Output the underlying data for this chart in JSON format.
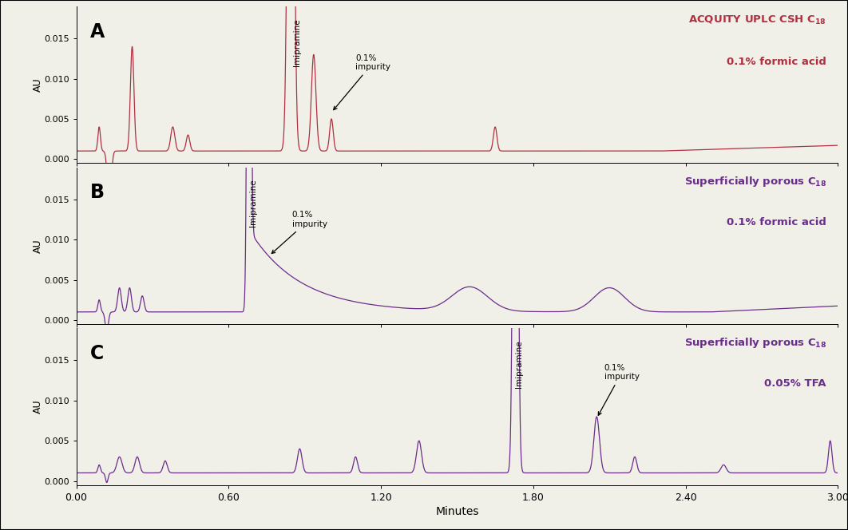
{
  "color_A": "#b03040",
  "color_BC": "#6b2d8b",
  "background": "#f0f0e8",
  "xlim": [
    0.0,
    3.0
  ],
  "ylim": [
    -0.0005,
    0.019
  ],
  "yticks": [
    0.0,
    0.005,
    0.01,
    0.015
  ],
  "xticks": [
    0.0,
    0.6,
    1.2,
    1.8,
    2.4,
    3.0
  ],
  "xlabel": "Minutes",
  "ylabel": "AU",
  "panel_labels": [
    "A",
    "B",
    "C"
  ],
  "label_A_part1": "ACQUITY UPLC CSH C",
  "label_A_sub": "18",
  "label_A_line2": "0.1% formic acid",
  "label_B_part1": "Superficially porous C",
  "label_B_sub": "18",
  "label_B_line2": "0.1% formic acid",
  "label_C_part1": "Superficially porous C",
  "label_C_sub": "18",
  "label_C_line2": "0.05% TFA",
  "baseline": 0.001,
  "imipramine_label": "Imipramine",
  "impurity_label": "0.1%\nimpurity"
}
